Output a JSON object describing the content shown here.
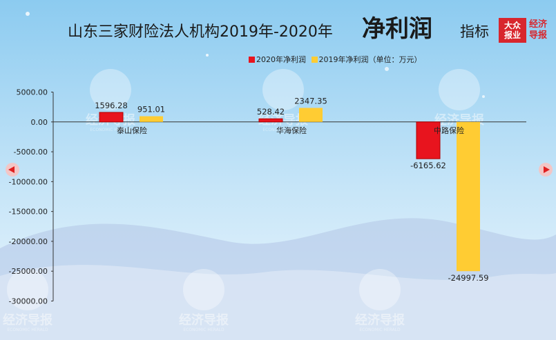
{
  "header": {
    "title_main": "山东三家财险法人机构2019年-2020年",
    "title_big": "净利润",
    "title_tail": "指标",
    "logo_text_1": "大众",
    "logo_text_2": "报业",
    "logo_side_1": "经济",
    "logo_side_2": "导报"
  },
  "watermark": {
    "text": "经济导报",
    "subtext": "ECONOMIC HERALD"
  },
  "colors": {
    "series_2020": "#e8141e",
    "series_2019": "#ffcc33",
    "bg_top": "#9fd3f3",
    "bg_bottom": "#e4f2fb"
  },
  "chart_data": {
    "type": "bar",
    "title": "山东三家财险法人机构2019年-2020年净利润指标",
    "unit_note": "（单位：万元）",
    "categories": [
      "泰山保险",
      "华海保险",
      "中路保险"
    ],
    "series": [
      {
        "name": "2020年净利润",
        "values": [
          1596.28,
          528.42,
          -6165.62
        ]
      },
      {
        "name": "2019年净利润",
        "values": [
          951.01,
          2347.35,
          -24997.59
        ]
      }
    ],
    "data_labels": [
      [
        "1596.28",
        "528.42",
        "-6165.62"
      ],
      [
        "951.01",
        "2347.35",
        "-24997.59"
      ]
    ],
    "y_ticks": [
      "5000.00",
      "0.00",
      "-5000.00",
      "-10000.00",
      "-15000.00",
      "-20000.00",
      "-25000.00",
      "-30000.00"
    ],
    "y_tick_values": [
      5000,
      0,
      -5000,
      -10000,
      -15000,
      -20000,
      -25000,
      -30000
    ],
    "ylim": [
      -30000,
      5000
    ],
    "legend_position": "top",
    "xlabel": "",
    "ylabel": ""
  }
}
